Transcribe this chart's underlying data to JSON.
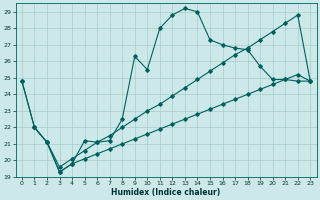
{
  "bg_color": "#cce8e8",
  "grid_color": "#aacccc",
  "line_color": "#006060",
  "xlabel": "Humidex (Indice chaleur)",
  "xlim": [
    -0.5,
    23.5
  ],
  "ylim": [
    19,
    29.5
  ],
  "yticks": [
    19,
    20,
    21,
    22,
    23,
    24,
    25,
    26,
    27,
    28,
    29
  ],
  "xticks": [
    0,
    1,
    2,
    3,
    4,
    5,
    6,
    7,
    8,
    9,
    10,
    11,
    12,
    13,
    14,
    15,
    16,
    17,
    18,
    19,
    20,
    21,
    22,
    23
  ],
  "line1_x": [
    0,
    1,
    2,
    3,
    4,
    5,
    6,
    7,
    8,
    9,
    10,
    11,
    12,
    13,
    14,
    15,
    16,
    17,
    18,
    19,
    20,
    21,
    22,
    23
  ],
  "line1_y": [
    24.8,
    22.0,
    21.1,
    19.3,
    19.8,
    21.2,
    21.1,
    21.2,
    22.5,
    26.3,
    25.5,
    28.0,
    28.8,
    29.2,
    29.0,
    27.3,
    27.0,
    26.8,
    26.7,
    25.7,
    24.9,
    24.9,
    24.8,
    24.8
  ],
  "line2_x": [
    1,
    2,
    3,
    4,
    5,
    6,
    7,
    8,
    9,
    10,
    11,
    12,
    13,
    14,
    15,
    16,
    17,
    18,
    19,
    20,
    21,
    22,
    23
  ],
  "line2_y": [
    22.0,
    21.1,
    19.3,
    19.8,
    20.1,
    20.4,
    20.7,
    21.0,
    21.3,
    21.6,
    21.9,
    22.2,
    22.5,
    22.8,
    23.1,
    23.4,
    23.7,
    24.0,
    24.3,
    24.6,
    24.9,
    25.2,
    24.8
  ],
  "line3_x": [
    0,
    1,
    2,
    3,
    4,
    5,
    6,
    7,
    8,
    9,
    10,
    11,
    12,
    13,
    14,
    15,
    16,
    17,
    18,
    19,
    20,
    21,
    22,
    23
  ],
  "line3_y": [
    24.8,
    22.0,
    21.1,
    19.6,
    20.1,
    20.6,
    21.1,
    21.5,
    22.0,
    22.5,
    23.0,
    23.4,
    23.9,
    24.4,
    24.9,
    25.4,
    25.9,
    26.4,
    26.8,
    27.3,
    27.8,
    28.3,
    28.8,
    24.8
  ]
}
